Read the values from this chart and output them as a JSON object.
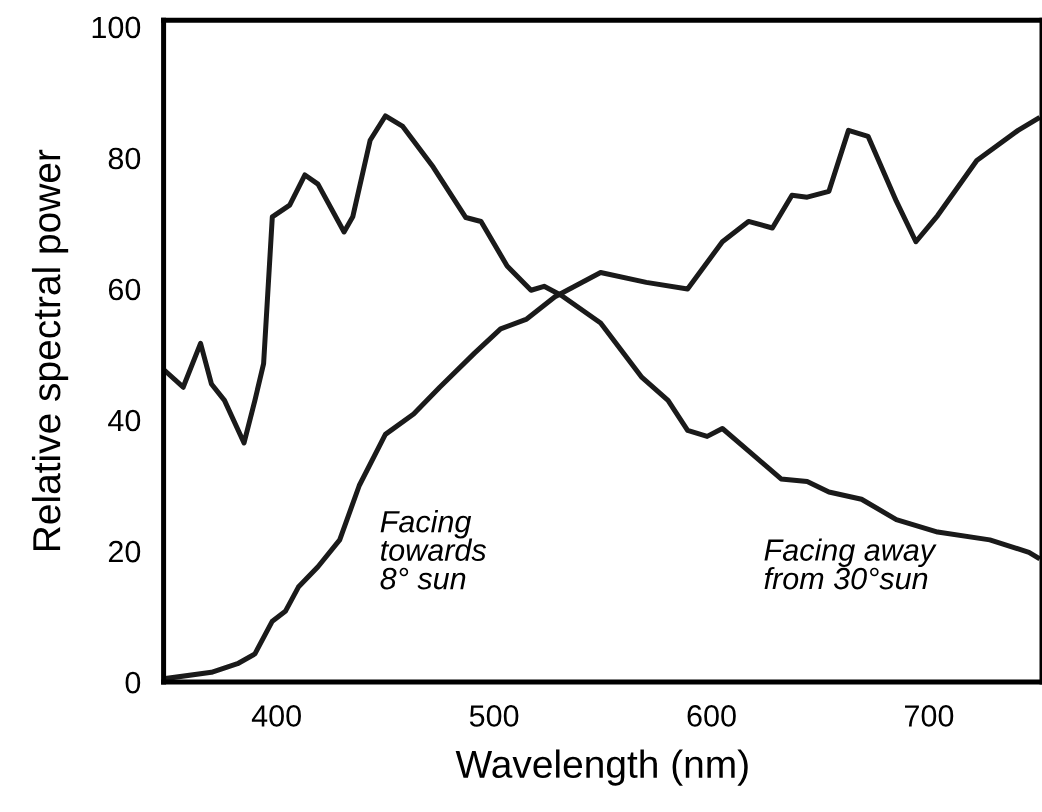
{
  "chart_data": {
    "type": "line",
    "xlabel": "Wavelength (nm)",
    "ylabel": "Relative spectral power",
    "xlim": [
      348,
      752
    ],
    "ylim": [
      0,
      101
    ],
    "xticks": [
      400,
      500,
      600,
      700
    ],
    "yticks": [
      0,
      20,
      40,
      60,
      80,
      100
    ],
    "grid": false,
    "legend": false,
    "marker": "none",
    "line_style": "solid",
    "series": [
      {
        "color": "#1a1a1a",
        "x": [
          348,
          357,
          365,
          370,
          376,
          385,
          390,
          394,
          398,
          406,
          413,
          419,
          431,
          435,
          443,
          450,
          458,
          472,
          487,
          494,
          506,
          517,
          523,
          531,
          549,
          568,
          580,
          589,
          598,
          605,
          617,
          632,
          644,
          654,
          669,
          685,
          704,
          728,
          746,
          750
        ],
        "values": [
          47.7,
          45,
          51.7,
          45.5,
          43,
          36.5,
          43,
          48.6,
          71,
          72.8,
          77.4,
          76,
          68.7,
          71,
          82.7,
          86.4,
          84.8,
          78.6,
          70.9,
          70.3,
          63.5,
          59.8,
          60.4,
          59,
          54.8,
          46.5,
          43,
          38.4,
          37.5,
          38.7,
          35.3,
          31,
          30.6,
          29,
          27.9,
          24.8,
          22.9,
          21.7,
          19.8,
          19
        ]
      },
      {
        "color": "#1a1a1a",
        "x": [
          348,
          370,
          382,
          390,
          398,
          404,
          410,
          419,
          429,
          438,
          450,
          463,
          475,
          491,
          503,
          515,
          528,
          549,
          570,
          589,
          605,
          617,
          628,
          637,
          644,
          654,
          663,
          672,
          685,
          694,
          704,
          722,
          741,
          750
        ],
        "values": [
          0.5,
          1.5,
          2.8,
          4.3,
          9.3,
          10.8,
          14.5,
          17.6,
          21.7,
          30,
          37.8,
          40.9,
          45,
          50.2,
          53.9,
          55.4,
          58.8,
          62.5,
          61,
          60,
          67.2,
          70.3,
          69.3,
          74.3,
          74,
          74.9,
          84.2,
          83.3,
          73.4,
          67.2,
          71.2,
          79.6,
          84.2,
          86
        ]
      }
    ],
    "annotations": [
      "Facing\ntowards\n8° sun",
      "Facing away\nfrom 30°sun"
    ]
  }
}
